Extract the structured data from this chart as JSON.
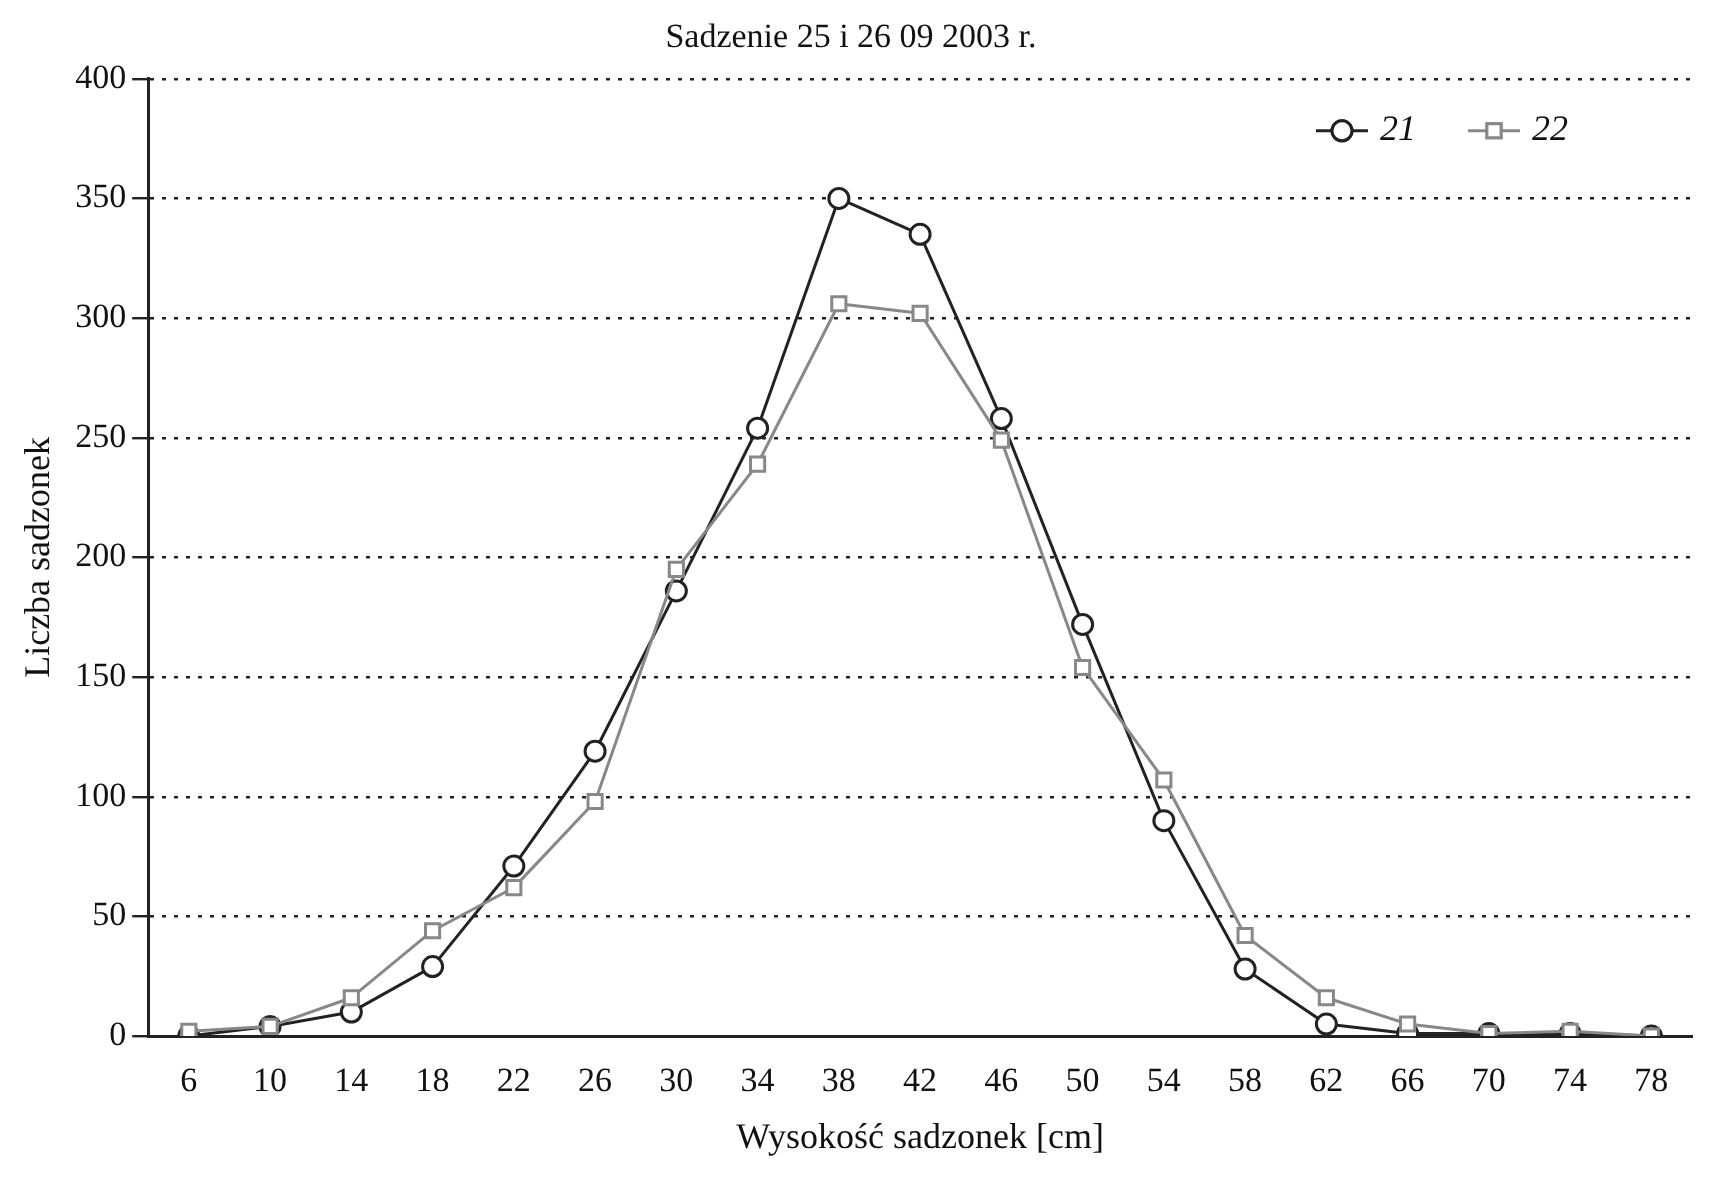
{
  "chart_data": {
    "type": "line",
    "title": "Sadzenie 25 i 26 09 2003 r.",
    "xlabel": "Wysokość sadzonek [cm]",
    "ylabel": "Liczba sadzonek",
    "categories": [
      "6",
      "10",
      "14",
      "18",
      "22",
      "26",
      "30",
      "34",
      "38",
      "42",
      "46",
      "50",
      "54",
      "58",
      "62",
      "66",
      "70",
      "74",
      "78"
    ],
    "series": [
      {
        "name": "21",
        "color": "#222222",
        "marker": "circle",
        "values": [
          0,
          4,
          10,
          29,
          71,
          119,
          186,
          254,
          350,
          335,
          258,
          172,
          90,
          28,
          5,
          1,
          1,
          1,
          0
        ]
      },
      {
        "name": "22",
        "color": "#888888",
        "marker": "square",
        "values": [
          2,
          4,
          16,
          44,
          62,
          98,
          195,
          239,
          306,
          302,
          249,
          154,
          107,
          42,
          16,
          5,
          1,
          2,
          0
        ]
      }
    ],
    "ylim": [
      0,
      400
    ],
    "yticks": [
      0,
      50,
      100,
      150,
      200,
      250,
      300,
      350,
      400
    ],
    "grid": "y",
    "legend": "top right",
    "line_style": "solid"
  }
}
